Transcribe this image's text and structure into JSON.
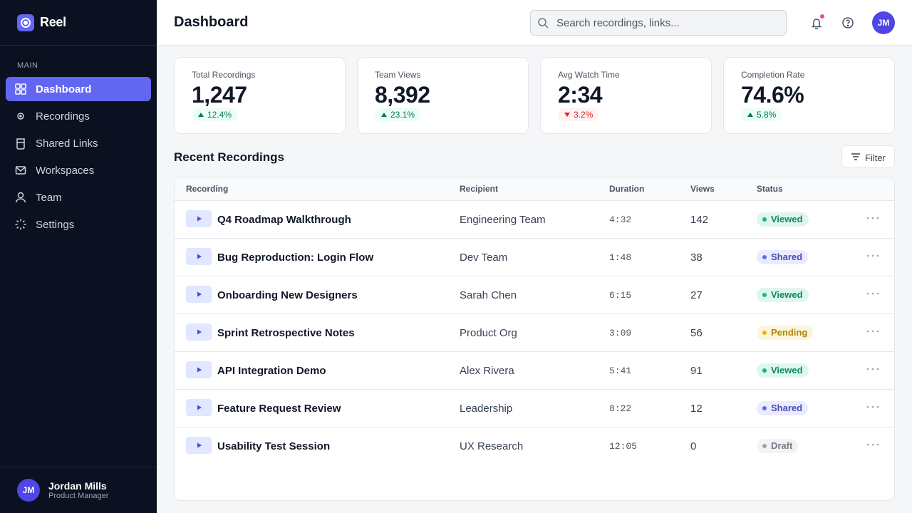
{
  "sidebar": {
    "brand": "Reel",
    "section": "MAIN",
    "nav": [
      {
        "label": "Dashboard",
        "active": true
      },
      {
        "label": "Recordings",
        "active": false
      },
      {
        "label": "Shared Links",
        "active": false
      },
      {
        "label": "Workspaces",
        "active": false
      },
      {
        "label": "Team",
        "active": false
      },
      {
        "label": "Settings",
        "active": false
      }
    ],
    "user": {
      "initials": "JM",
      "name": "Jordan Mills",
      "role": "Product Manager"
    }
  },
  "header": {
    "title": "Dashboard",
    "search_placeholder": "Search recordings, links...",
    "avatar": "JM"
  },
  "stats": [
    {
      "label": "Total Recordings",
      "value": "1,247",
      "change": "12.4%",
      "trend": "up"
    },
    {
      "label": "Team Views",
      "value": "8,392",
      "change": "23.1%",
      "trend": "up"
    },
    {
      "label": "Avg Watch Time",
      "value": "2:34",
      "change": "3.2%",
      "trend": "down"
    },
    {
      "label": "Completion Rate",
      "value": "74.6%",
      "change": "5.8%",
      "trend": "up"
    }
  ],
  "recent": {
    "title": "Recent Recordings",
    "filter": "Filter",
    "columns": [
      "Recording",
      "Recipient",
      "Duration",
      "Views",
      "Status"
    ],
    "rows": [
      {
        "recording": "Q4 Roadmap Walkthrough",
        "recipient": "Engineering Team",
        "duration": "4:32",
        "views": 142,
        "status": "Viewed",
        "status_color": "#10b981"
      },
      {
        "recording": "Bug Reproduction: Login Flow",
        "recipient": "Dev Team",
        "duration": "1:48",
        "views": 38,
        "status": "Shared",
        "status_color": "#6366f1"
      },
      {
        "recording": "Onboarding New Designers",
        "recipient": "Sarah Chen",
        "duration": "6:15",
        "views": 27,
        "status": "Viewed",
        "status_color": "#10b981"
      },
      {
        "recording": "Sprint Retrospective Notes",
        "recipient": "Product Org",
        "duration": "3:09",
        "views": 56,
        "status": "Pending",
        "status_color": "#eab308"
      },
      {
        "recording": "API Integration Demo",
        "recipient": "Alex Rivera",
        "duration": "5:41",
        "views": 91,
        "status": "Viewed",
        "status_color": "#10b981"
      },
      {
        "recording": "Feature Request Review",
        "recipient": "Leadership",
        "duration": "8:22",
        "views": 12,
        "status": "Shared",
        "status_color": "#6366f1"
      },
      {
        "recording": "Usability Test Session",
        "recipient": "UX Research",
        "duration": "12:05",
        "views": 0,
        "status": "Draft",
        "status_color": "#9ca3af"
      }
    ]
  }
}
